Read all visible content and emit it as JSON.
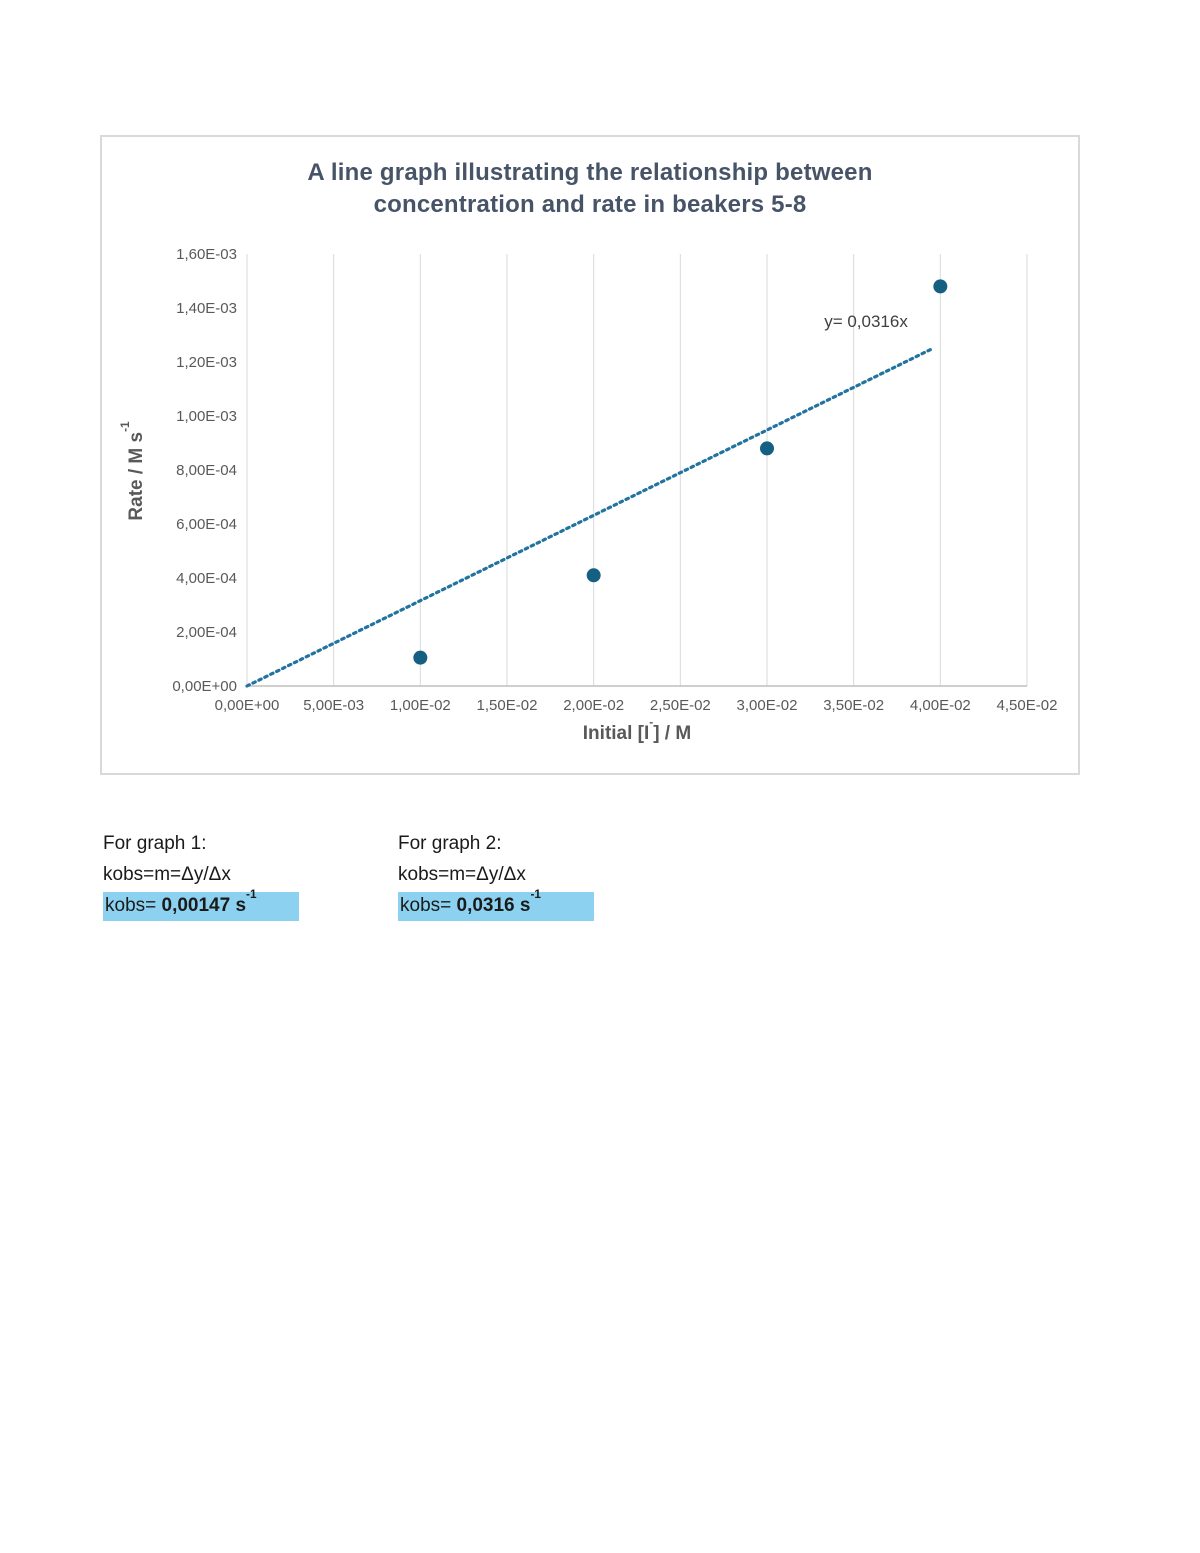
{
  "chart_data": {
    "type": "scatter",
    "title": "A line graph illustrating the relationship between concentration and rate in beakers 5-8",
    "title_line1": "A line graph illustrating the relationship between",
    "title_line2": "concentration and rate in beakers 5-8",
    "xlabel_pre": "Initial [I",
    "xlabel_sup": "-",
    "xlabel_post": "] / M",
    "ylabel_main": "Rate / M s",
    "ylabel_sup": "-1",
    "xlim": [
      0,
      0.045
    ],
    "ylim": [
      0,
      0.0016
    ],
    "x_tick_values": [
      0,
      0.005,
      0.01,
      0.015,
      0.02,
      0.025,
      0.03,
      0.035,
      0.04,
      0.045
    ],
    "x_tick_labels": [
      "0,00E+00",
      "5,00E-03",
      "1,00E-02",
      "1,50E-02",
      "2,00E-02",
      "2,50E-02",
      "3,00E-02",
      "3,50E-02",
      "4,00E-02",
      "4,50E-02"
    ],
    "y_tick_values": [
      0,
      0.0002,
      0.0004,
      0.0006,
      0.0008,
      0.001,
      0.0012,
      0.0014,
      0.0016
    ],
    "y_tick_labels": [
      "0,00E+00",
      "2,00E-04",
      "4,00E-04",
      "6,00E-04",
      "8,00E-04",
      "1,00E-03",
      "1,20E-03",
      "1,40E-03",
      "1,60E-03"
    ],
    "grid": "vertical-only",
    "legend": "none",
    "points": [
      {
        "x": 0.01,
        "y": 0.000105
      },
      {
        "x": 0.02,
        "y": 0.00041
      },
      {
        "x": 0.03,
        "y": 0.00088
      },
      {
        "x": 0.04,
        "y": 0.00148
      }
    ],
    "trendline": {
      "slope": 0.0316,
      "x_start": 0,
      "x_end": 0.0395,
      "style": "dotted",
      "label": "y= 0,0316x",
      "label_x": 0.0333,
      "label_y": 0.00133
    },
    "colors": {
      "point": "#156082",
      "trendline": "#2273A0",
      "grid": "#d9d9d9",
      "axis": "#bfbfbf",
      "title": "#475468",
      "tick_text": "#595959",
      "axis_title_text": "#595959",
      "trend_label_text": "#404040"
    }
  },
  "notes": {
    "highlight_color": "#8CD2F0",
    "graph1": {
      "heading": "For graph 1:",
      "formula": "kobs=m=Δy/Δx",
      "result_prefix": "kobs= ",
      "result_value": "0,00147 s",
      "result_sup": "-1"
    },
    "graph2": {
      "heading": "For graph 2:",
      "formula": "kobs=m=Δy/Δx",
      "result_prefix": "kobs= ",
      "result_value": "0,0316 s",
      "result_sup": "-1"
    }
  }
}
